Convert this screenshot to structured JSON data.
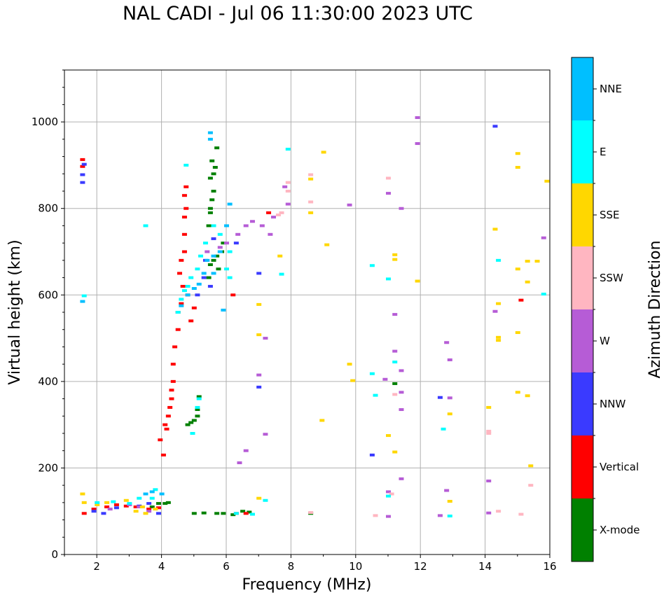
{
  "chart_data": {
    "type": "scatter",
    "title": "NAL CADI - Jul 06 11:30:00 2023 UTC",
    "xlabel": "Frequency (MHz)",
    "ylabel": "Virtual height (km)",
    "xlim": [
      1,
      16
    ],
    "ylim": [
      0,
      1120
    ],
    "xticks": [
      2,
      4,
      6,
      8,
      10,
      12,
      14,
      16
    ],
    "yticks": [
      0,
      200,
      400,
      600,
      800,
      1000
    ],
    "grid": true,
    "colorbar": {
      "label": "Azimuth Direction",
      "categories": [
        {
          "name": "X-mode",
          "color": "#008000"
        },
        {
          "name": "Vertical",
          "color": "#ff0000"
        },
        {
          "name": "NNW",
          "color": "#3a3aff"
        },
        {
          "name": "W",
          "color": "#b65cd6"
        },
        {
          "name": "SSW",
          "color": "#ffb6c1"
        },
        {
          "name": "SSE",
          "color": "#ffd700"
        },
        {
          "name": "E",
          "color": "#00ffff"
        },
        {
          "name": "NNE",
          "color": "#00bfff"
        }
      ]
    },
    "series": [
      {
        "name": "X-mode",
        "points": [
          [
            3.7,
            110
          ],
          [
            3.9,
            118
          ],
          [
            4.1,
            118
          ],
          [
            4.2,
            120
          ],
          [
            5.0,
            95
          ],
          [
            5.3,
            96
          ],
          [
            5.7,
            95
          ],
          [
            5.9,
            95
          ],
          [
            6.2,
            92
          ],
          [
            6.5,
            100
          ],
          [
            6.7,
            98
          ],
          [
            8.6,
            95
          ],
          [
            4.8,
            300
          ],
          [
            4.9,
            305
          ],
          [
            5.0,
            310
          ],
          [
            5.1,
            320
          ],
          [
            5.1,
            335
          ],
          [
            5.15,
            365
          ],
          [
            5.45,
            640
          ],
          [
            5.5,
            670
          ],
          [
            5.6,
            680
          ],
          [
            5.7,
            690
          ],
          [
            5.75,
            660
          ],
          [
            5.85,
            700
          ],
          [
            5.9,
            720
          ],
          [
            5.45,
            760
          ],
          [
            5.5,
            790
          ],
          [
            5.5,
            800
          ],
          [
            5.55,
            820
          ],
          [
            5.6,
            840
          ],
          [
            5.5,
            870
          ],
          [
            5.6,
            880
          ],
          [
            5.65,
            895
          ],
          [
            5.55,
            910
          ],
          [
            5.7,
            940
          ],
          [
            11.2,
            395
          ]
        ]
      },
      {
        "name": "Vertical",
        "points": [
          [
            1.6,
            95
          ],
          [
            1.9,
            105
          ],
          [
            2.3,
            110
          ],
          [
            2.6,
            115
          ],
          [
            2.9,
            112
          ],
          [
            3.2,
            110
          ],
          [
            3.6,
            105
          ],
          [
            3.9,
            108
          ],
          [
            3.95,
            265
          ],
          [
            4.05,
            230
          ],
          [
            4.1,
            300
          ],
          [
            4.15,
            290
          ],
          [
            4.2,
            320
          ],
          [
            4.25,
            340
          ],
          [
            4.3,
            360
          ],
          [
            4.3,
            380
          ],
          [
            4.35,
            400
          ],
          [
            4.35,
            440
          ],
          [
            4.4,
            480
          ],
          [
            4.5,
            520
          ],
          [
            4.5,
            560
          ],
          [
            4.6,
            580
          ],
          [
            4.65,
            620
          ],
          [
            4.55,
            650
          ],
          [
            4.6,
            680
          ],
          [
            4.7,
            700
          ],
          [
            4.7,
            740
          ],
          [
            4.7,
            780
          ],
          [
            4.75,
            800
          ],
          [
            4.7,
            830
          ],
          [
            4.75,
            850
          ],
          [
            4.8,
            600
          ],
          [
            4.9,
            540
          ],
          [
            5.0,
            570
          ],
          [
            6.2,
            600
          ],
          [
            6.3,
            95
          ],
          [
            6.6,
            95
          ],
          [
            7.3,
            790
          ],
          [
            1.55,
            897
          ],
          [
            1.55,
            913
          ],
          [
            15.1,
            588
          ]
        ]
      },
      {
        "name": "NNW",
        "points": [
          [
            1.55,
            860
          ],
          [
            1.55,
            878
          ],
          [
            1.9,
            100
          ],
          [
            2.2,
            95
          ],
          [
            2.6,
            108
          ],
          [
            3.3,
            112
          ],
          [
            3.6,
            118
          ],
          [
            3.9,
            95
          ],
          [
            5.5,
            620
          ],
          [
            5.1,
            600
          ],
          [
            5.3,
            640
          ],
          [
            5.35,
            680
          ],
          [
            5.6,
            730
          ],
          [
            6.3,
            720
          ],
          [
            7.0,
            650
          ],
          [
            7.0,
            387
          ],
          [
            10.5,
            230
          ],
          [
            12.6,
            363
          ],
          [
            14.3,
            990
          ],
          [
            1.6,
            902
          ]
        ]
      },
      {
        "name": "W",
        "points": [
          [
            2.4,
            105
          ],
          [
            3.0,
            115
          ],
          [
            3.3,
            110
          ],
          [
            3.6,
            100
          ],
          [
            5.4,
            700
          ],
          [
            5.8,
            710
          ],
          [
            6.0,
            720
          ],
          [
            6.35,
            740
          ],
          [
            6.6,
            760
          ],
          [
            6.8,
            770
          ],
          [
            7.1,
            760
          ],
          [
            7.35,
            740
          ],
          [
            7.45,
            780
          ],
          [
            7.0,
            415
          ],
          [
            7.2,
            500
          ],
          [
            7.2,
            278
          ],
          [
            6.4,
            212
          ],
          [
            6.6,
            240
          ],
          [
            7.8,
            850
          ],
          [
            7.9,
            810
          ],
          [
            9.8,
            808
          ],
          [
            10.9,
            405
          ],
          [
            11.0,
            835
          ],
          [
            11.2,
            555
          ],
          [
            11.2,
            470
          ],
          [
            11.4,
            800
          ],
          [
            11.4,
            425
          ],
          [
            11.4,
            375
          ],
          [
            11.4,
            335
          ],
          [
            11.4,
            175
          ],
          [
            11.0,
            145
          ],
          [
            11.9,
            1010
          ],
          [
            11.9,
            950
          ],
          [
            12.8,
            490
          ],
          [
            12.9,
            450
          ],
          [
            12.9,
            362
          ],
          [
            12.8,
            148
          ],
          [
            12.6,
            90
          ],
          [
            14.1,
            170
          ],
          [
            14.1,
            96
          ],
          [
            14.3,
            562
          ],
          [
            15.8,
            732
          ],
          [
            11.0,
            88
          ]
        ]
      },
      {
        "name": "SSW",
        "points": [
          [
            7.7,
            790
          ],
          [
            7.9,
            860
          ],
          [
            7.9,
            840
          ],
          [
            8.6,
            878
          ],
          [
            8.6,
            815
          ],
          [
            8.6,
            97
          ],
          [
            11.0,
            870
          ],
          [
            11.2,
            370
          ],
          [
            11.1,
            140
          ],
          [
            10.6,
            90
          ],
          [
            14.1,
            280
          ],
          [
            14.4,
            100
          ],
          [
            14.1,
            285
          ],
          [
            15.1,
            93
          ],
          [
            15.4,
            160
          ],
          [
            7.6,
            785
          ]
        ]
      },
      {
        "name": "SSE",
        "points": [
          [
            1.55,
            140
          ],
          [
            1.6,
            120
          ],
          [
            2.0,
            115
          ],
          [
            2.3,
            120
          ],
          [
            2.9,
            125
          ],
          [
            3.4,
            110
          ],
          [
            3.2,
            100
          ],
          [
            3.5,
            95
          ],
          [
            3.8,
            105
          ],
          [
            7.0,
            130
          ],
          [
            7.0,
            578
          ],
          [
            7.0,
            508
          ],
          [
            7.65,
            690
          ],
          [
            8.6,
            868
          ],
          [
            8.6,
            790
          ],
          [
            9.0,
            930
          ],
          [
            9.1,
            716
          ],
          [
            8.95,
            310
          ],
          [
            9.8,
            440
          ],
          [
            9.9,
            402
          ],
          [
            11.0,
            275
          ],
          [
            11.2,
            237
          ],
          [
            11.2,
            693
          ],
          [
            11.2,
            682
          ],
          [
            11.9,
            632
          ],
          [
            12.9,
            325
          ],
          [
            12.9,
            123
          ],
          [
            14.1,
            340
          ],
          [
            14.3,
            752
          ],
          [
            14.4,
            580
          ],
          [
            14.4,
            502
          ],
          [
            14.4,
            495
          ],
          [
            15.0,
            927
          ],
          [
            15.0,
            895
          ],
          [
            15.0,
            660
          ],
          [
            15.0,
            513
          ],
          [
            15.0,
            375
          ],
          [
            15.3,
            678
          ],
          [
            15.6,
            678
          ],
          [
            15.3,
            630
          ],
          [
            15.3,
            367
          ],
          [
            15.4,
            205
          ],
          [
            15.9,
            863
          ]
        ]
      },
      {
        "name": "E",
        "points": [
          [
            1.6,
            598
          ],
          [
            2.0,
            120
          ],
          [
            2.5,
            122
          ],
          [
            3.0,
            118
          ],
          [
            3.3,
            130
          ],
          [
            3.7,
            130
          ],
          [
            3.8,
            150
          ],
          [
            3.5,
            760
          ],
          [
            4.5,
            560
          ],
          [
            4.6,
            590
          ],
          [
            4.7,
            610
          ],
          [
            4.8,
            620
          ],
          [
            4.9,
            640
          ],
          [
            5.1,
            660
          ],
          [
            5.2,
            690
          ],
          [
            5.35,
            720
          ],
          [
            5.6,
            760
          ],
          [
            5.8,
            740
          ],
          [
            6.1,
            700
          ],
          [
            6.0,
            660
          ],
          [
            6.1,
            640
          ],
          [
            4.95,
            280
          ],
          [
            5.1,
            340
          ],
          [
            5.15,
            360
          ],
          [
            6.3,
            95
          ],
          [
            6.8,
            93
          ],
          [
            7.2,
            125
          ],
          [
            7.7,
            648
          ],
          [
            7.9,
            937
          ],
          [
            10.5,
            668
          ],
          [
            10.6,
            368
          ],
          [
            10.5,
            418
          ],
          [
            11.0,
            637
          ],
          [
            11.2,
            445
          ],
          [
            11.0,
            135
          ],
          [
            12.7,
            290
          ],
          [
            12.9,
            89
          ],
          [
            14.4,
            680
          ],
          [
            15.8,
            602
          ],
          [
            4.75,
            900
          ]
        ]
      },
      {
        "name": "NNE",
        "points": [
          [
            1.55,
            585
          ],
          [
            3.5,
            140
          ],
          [
            3.7,
            145
          ],
          [
            4.0,
            140
          ],
          [
            4.6,
            575
          ],
          [
            4.8,
            600
          ],
          [
            5.0,
            615
          ],
          [
            5.15,
            625
          ],
          [
            5.3,
            650
          ],
          [
            5.4,
            680
          ],
          [
            5.6,
            690
          ],
          [
            5.6,
            650
          ],
          [
            5.8,
            700
          ],
          [
            6.0,
            760
          ],
          [
            6.1,
            810
          ],
          [
            5.9,
            565
          ],
          [
            5.5,
            975
          ],
          [
            5.5,
            960
          ]
        ]
      }
    ]
  }
}
